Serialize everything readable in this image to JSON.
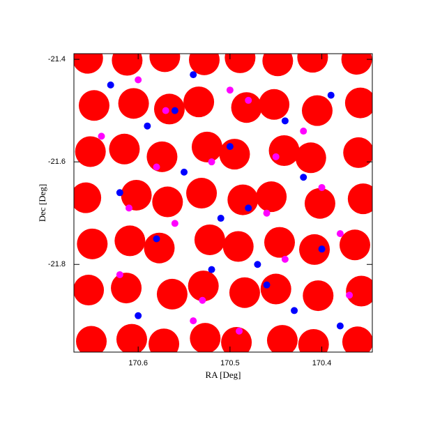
{
  "chart_data": {
    "type": "scatter",
    "x_label": "RA [Deg]",
    "y_label": "Dec [Deg]",
    "xlim": [
      170.67,
      170.345
    ],
    "ylim": [
      -21.971,
      -21.389
    ],
    "xticks": [
      170.6,
      170.5,
      170.4
    ],
    "yticks": [
      -21.4,
      -21.6,
      -21.8
    ],
    "series": [
      {
        "color": "#ff0000",
        "x": [
          170.655,
          170.612,
          170.571,
          170.528,
          170.489,
          170.448,
          170.41,
          170.362,
          170.648,
          170.605,
          170.566,
          170.534,
          170.482,
          170.452,
          170.405,
          170.358,
          170.652,
          170.615,
          170.574,
          170.525,
          170.495,
          170.441,
          170.412,
          170.36,
          170.657,
          170.602,
          170.568,
          170.531,
          170.486,
          170.455,
          170.402,
          170.355,
          170.65,
          170.609,
          170.577,
          170.522,
          170.491,
          170.446,
          170.408,
          170.364,
          170.654,
          170.613,
          170.563,
          170.529,
          170.484,
          170.45,
          170.404,
          170.357,
          170.651,
          170.607,
          170.572,
          170.527,
          170.493,
          170.443,
          170.409,
          170.361
        ],
        "values": [
          -21.398,
          -21.402,
          -21.395,
          -21.401,
          -21.397,
          -21.403,
          -21.396,
          -21.4,
          -21.49,
          -21.486,
          -21.497,
          -21.483,
          -21.494,
          -21.488,
          -21.5,
          -21.485,
          -21.58,
          -21.575,
          -21.59,
          -21.571,
          -21.585,
          -21.578,
          -21.592,
          -21.582,
          -21.67,
          -21.665,
          -21.678,
          -21.661,
          -21.674,
          -21.668,
          -21.681,
          -21.672,
          -21.76,
          -21.754,
          -21.768,
          -21.752,
          -21.765,
          -21.757,
          -21.771,
          -21.762,
          -21.85,
          -21.846,
          -21.858,
          -21.842,
          -21.855,
          -21.848,
          -21.861,
          -21.852,
          -21.95,
          -21.946,
          -21.955,
          -21.944,
          -21.952,
          -21.948,
          -21.956,
          -21.951
        ]
      },
      {
        "color": "#0000ff",
        "x": [
          170.63,
          170.59,
          170.55,
          170.51,
          170.47,
          170.43,
          170.39,
          170.62,
          170.58,
          170.54,
          170.5,
          170.46,
          170.42,
          170.38,
          170.6,
          170.52,
          170.44,
          170.56,
          170.48,
          170.4
        ],
        "values": [
          -21.45,
          -21.53,
          -21.62,
          -21.71,
          -21.8,
          -21.89,
          -21.47,
          -21.66,
          -21.75,
          -21.43,
          -21.57,
          -21.84,
          -21.63,
          -21.92,
          -21.9,
          -21.81,
          -21.52,
          -21.5,
          -21.69,
          -21.77
        ]
      },
      {
        "color": "#ff00ff",
        "x": [
          170.64,
          170.6,
          170.56,
          170.52,
          170.48,
          170.44,
          170.4,
          170.37,
          170.62,
          170.58,
          170.54,
          170.5,
          170.46,
          170.42,
          170.38,
          170.61,
          170.53,
          170.45,
          170.57,
          170.49
        ],
        "values": [
          -21.55,
          -21.44,
          -21.72,
          -21.6,
          -21.48,
          -21.79,
          -21.65,
          -21.86,
          -21.82,
          -21.61,
          -21.91,
          -21.46,
          -21.7,
          -21.54,
          -21.74,
          -21.69,
          -21.87,
          -21.59,
          -21.5,
          -21.93
        ]
      }
    ]
  }
}
